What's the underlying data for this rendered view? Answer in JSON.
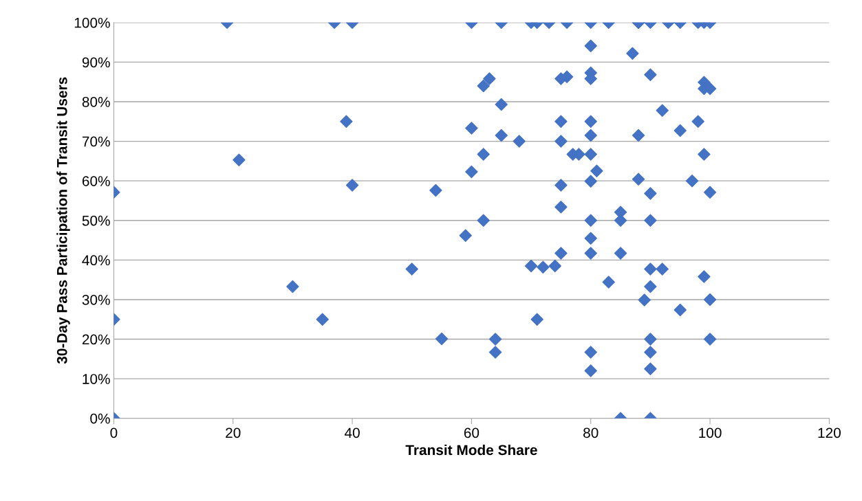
{
  "chart_data": {
    "type": "scatter",
    "xlabel": "Transit Mode Share",
    "ylabel": "30-Day Pass Participation of Transit Users",
    "marker": "diamond",
    "grid": "y",
    "legend": false,
    "xlim": [
      0,
      120
    ],
    "xticks": [
      0,
      20,
      40,
      60,
      80,
      100,
      120
    ],
    "ylim": [
      0,
      100
    ],
    "yticks": [
      {
        "value": 0,
        "label": "0%"
      },
      {
        "value": 10,
        "label": "10%"
      },
      {
        "value": 20,
        "label": "20%"
      },
      {
        "value": 30,
        "label": "30%"
      },
      {
        "value": 40,
        "label": "40%"
      },
      {
        "value": 50,
        "label": "50%"
      },
      {
        "value": 60,
        "label": "60%"
      },
      {
        "value": 70,
        "label": "70%"
      },
      {
        "value": 80,
        "label": "80%"
      },
      {
        "value": 90,
        "label": "90%"
      },
      {
        "value": 100,
        "label": "100%"
      }
    ],
    "series": [
      {
        "color": "#4472c4",
        "x": [
          19,
          37,
          40,
          60,
          65,
          70,
          71,
          73,
          76,
          80,
          83,
          88,
          88,
          90,
          93,
          95,
          98,
          99,
          100,
          0,
          85,
          90,
          0,
          0,
          21,
          30,
          35,
          39,
          40,
          50,
          54,
          55,
          59,
          60,
          60,
          62,
          63,
          62,
          62,
          65,
          65,
          68,
          64,
          64,
          70,
          72,
          74,
          71,
          75,
          76,
          75,
          75,
          75,
          75,
          75,
          77,
          78,
          80,
          80,
          80,
          80,
          80,
          80,
          80,
          80,
          80,
          80,
          80,
          80,
          81,
          83,
          85,
          85,
          85,
          87,
          88,
          88,
          89,
          90,
          90,
          90,
          90,
          90,
          90,
          90,
          90,
          92,
          92,
          95,
          95,
          97,
          98,
          99,
          99,
          100,
          99,
          99,
          100,
          100,
          100
        ],
        "values": [
          100,
          100,
          100,
          100,
          100,
          100,
          100,
          100,
          100,
          100,
          100,
          100,
          100,
          100,
          100,
          100,
          100,
          100,
          100,
          0,
          0,
          0,
          57.1,
          25,
          65.3,
          33.3,
          25,
          75,
          58.9,
          37.7,
          57.6,
          20.1,
          46.2,
          73.3,
          62.3,
          84,
          85.8,
          66.7,
          50,
          79.3,
          71.5,
          70,
          20,
          16.7,
          38.5,
          38.2,
          38.5,
          25,
          85.8,
          86.3,
          75,
          70,
          58.9,
          53.4,
          41.7,
          66.7,
          66.7,
          94.1,
          87.3,
          85.8,
          75,
          71.5,
          66.7,
          59.9,
          50,
          45.5,
          41.7,
          16.7,
          12,
          62.5,
          34.4,
          52.1,
          50,
          41.7,
          92.2,
          71.5,
          60.4,
          29.9,
          86.8,
          56.8,
          50,
          37.7,
          33.3,
          20,
          16.7,
          12.5,
          77.8,
          37.7,
          72.7,
          27.4,
          60,
          75,
          84.9,
          83.3,
          83.3,
          66.7,
          35.8,
          57.1,
          30,
          20
        ]
      }
    ]
  }
}
